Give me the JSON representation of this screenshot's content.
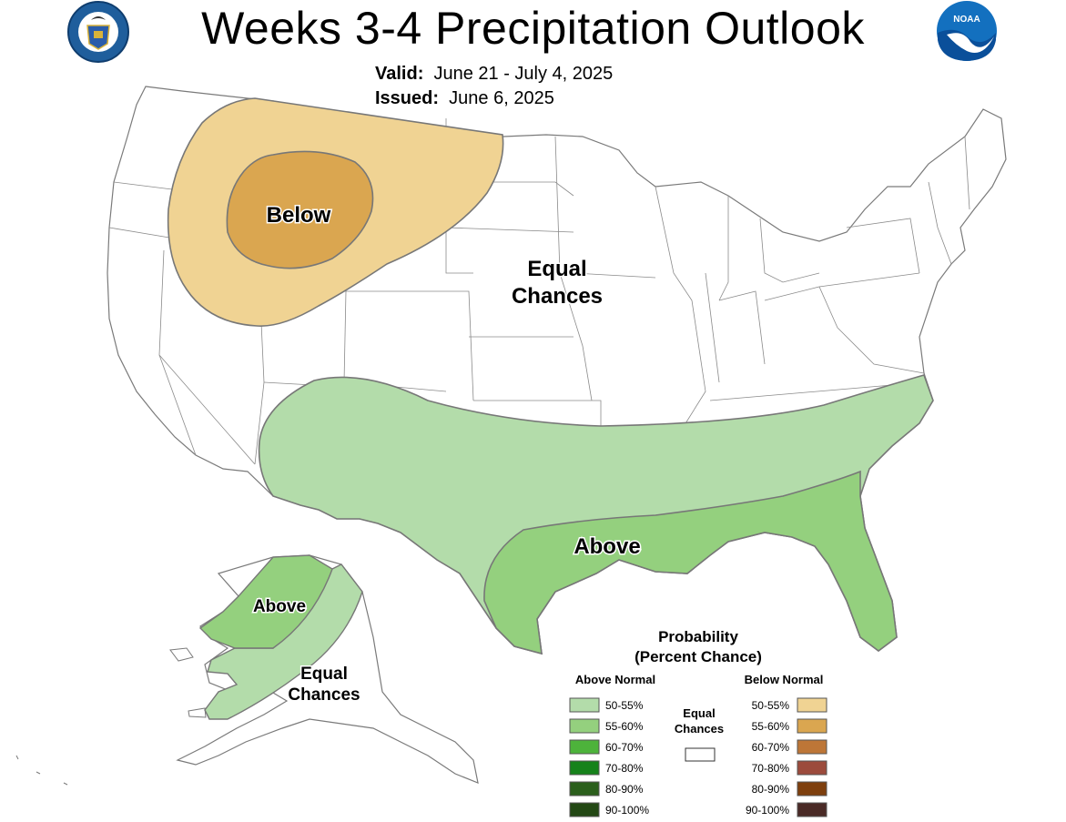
{
  "header": {
    "title": "Weeks 3-4 Precipitation Outlook",
    "valid_label": "Valid:",
    "valid_value": "June 21 - July 4, 2025",
    "issued_label": "Issued:",
    "issued_value": "June 6, 2025",
    "left_logo_text": "DEPARTMENT OF COMMERCE · UNITED STATES OF AMERICA",
    "right_logo_text": "NOAA"
  },
  "map": {
    "labels": {
      "below": "Below",
      "equal_line1": "Equal",
      "equal_line2": "Chances",
      "above": "Above",
      "alaska_above": "Above",
      "alaska_equal_line1": "Equal",
      "alaska_equal_line2": "Chances"
    }
  },
  "legend": {
    "title_line1": "Probability",
    "title_line2": "(Percent Chance)",
    "above_header": "Above Normal",
    "below_header": "Below Normal",
    "equal_line1": "Equal",
    "equal_line2": "Chances",
    "above": [
      {
        "label": "50-55%",
        "color": "#b3dcaa"
      },
      {
        "label": "55-60%",
        "color": "#94d07e"
      },
      {
        "label": "60-70%",
        "color": "#4db33b"
      },
      {
        "label": "70-80%",
        "color": "#16821b"
      },
      {
        "label": "80-90%",
        "color": "#2b5f1c"
      },
      {
        "label": "90-100%",
        "color": "#234814"
      }
    ],
    "below": [
      {
        "label": "50-55%",
        "color": "#f0d393"
      },
      {
        "label": "55-60%",
        "color": "#daa650"
      },
      {
        "label": "60-70%",
        "color": "#bd7637"
      },
      {
        "label": "70-80%",
        "color": "#9c4b3c"
      },
      {
        "label": "80-90%",
        "color": "#7e3f0d"
      },
      {
        "label": "90-100%",
        "color": "#4a2a26"
      }
    ],
    "equal_color": "#ffffff"
  }
}
